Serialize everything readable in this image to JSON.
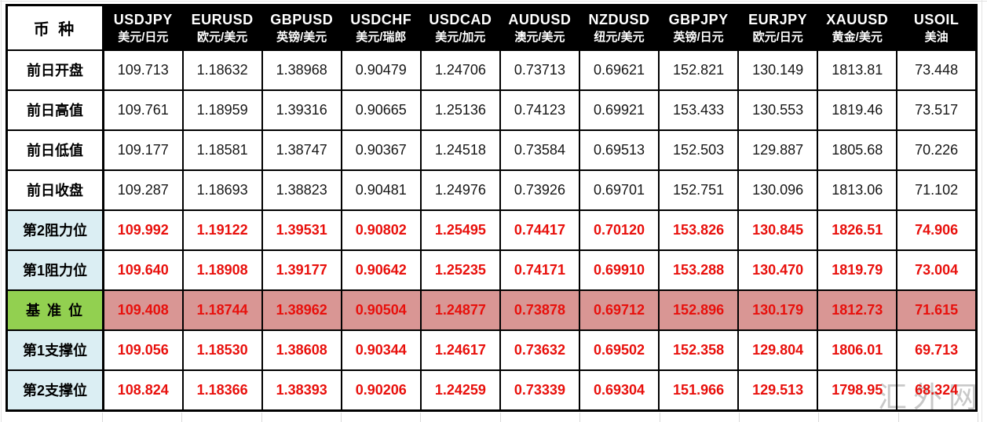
{
  "watermark": {
    "text": "汇外网"
  },
  "table": {
    "corner_label": "币 种"
  },
  "colors": {
    "header_bg": "#000000",
    "header_text": "#ffffff",
    "level_label_bg": "#dbeef3",
    "pivot_label_bg": "#92d050",
    "pivot_row_bg": "#d99694",
    "level_value_text": "#e8100c",
    "border": "#000000",
    "watermark_text": "#b9b9b9"
  },
  "chart_data": {
    "type": "table",
    "corner_label": "币 种",
    "columns": [
      {
        "code": "USDJPY",
        "name": "美元/日元"
      },
      {
        "code": "EURUSD",
        "name": "欧元/美元"
      },
      {
        "code": "GBPUSD",
        "name": "英镑/美元"
      },
      {
        "code": "USDCHF",
        "name": "美元/瑞郎"
      },
      {
        "code": "USDCAD",
        "name": "美元/加元"
      },
      {
        "code": "AUDUSD",
        "name": "澳元/美元"
      },
      {
        "code": "NZDUSD",
        "name": "纽元/美元"
      },
      {
        "code": "GBPJPY",
        "name": "英镑/日元"
      },
      {
        "code": "EURJPY",
        "name": "欧元/日元"
      },
      {
        "code": "XAUUSD",
        "name": "黄金/美元"
      },
      {
        "code": "USOIL",
        "name": "美油"
      }
    ],
    "rows": [
      {
        "label": "前日开盘",
        "type": "prev",
        "values": [
          "109.713",
          "1.18632",
          "1.38968",
          "0.90479",
          "1.24706",
          "0.73713",
          "0.69621",
          "152.821",
          "130.149",
          "1813.81",
          "73.448"
        ]
      },
      {
        "label": "前日高值",
        "type": "prev",
        "values": [
          "109.761",
          "1.18959",
          "1.39316",
          "0.90665",
          "1.25136",
          "0.74123",
          "0.69921",
          "153.433",
          "130.553",
          "1819.46",
          "73.517"
        ]
      },
      {
        "label": "前日低值",
        "type": "prev",
        "values": [
          "109.177",
          "1.18581",
          "1.38747",
          "0.90367",
          "1.24518",
          "0.73584",
          "0.69513",
          "152.503",
          "129.887",
          "1805.68",
          "70.226"
        ]
      },
      {
        "label": "前日收盘",
        "type": "prev",
        "values": [
          "109.287",
          "1.18693",
          "1.38823",
          "0.90481",
          "1.24976",
          "0.73926",
          "0.69701",
          "152.751",
          "130.096",
          "1813.06",
          "71.102"
        ]
      },
      {
        "label": "第2阻力位",
        "type": "resistance",
        "values": [
          "109.992",
          "1.19122",
          "1.39531",
          "0.90802",
          "1.25495",
          "0.74417",
          "0.70120",
          "153.826",
          "130.845",
          "1826.51",
          "74.906"
        ]
      },
      {
        "label": "第1阻力位",
        "type": "resistance",
        "values": [
          "109.640",
          "1.18908",
          "1.39177",
          "0.90642",
          "1.25235",
          "0.74171",
          "0.69910",
          "153.288",
          "130.470",
          "1819.79",
          "73.004"
        ]
      },
      {
        "label": "基 准 位",
        "type": "pivot",
        "values": [
          "109.408",
          "1.18744",
          "1.38962",
          "0.90504",
          "1.24877",
          "0.73878",
          "0.69712",
          "152.896",
          "130.179",
          "1812.73",
          "71.615"
        ]
      },
      {
        "label": "第1支撑位",
        "type": "support",
        "values": [
          "109.056",
          "1.18530",
          "1.38608",
          "0.90344",
          "1.24617",
          "0.73632",
          "0.69502",
          "152.358",
          "129.804",
          "1806.01",
          "69.713"
        ]
      },
      {
        "label": "第2支撑位",
        "type": "support",
        "values": [
          "108.824",
          "1.18366",
          "1.38393",
          "0.90206",
          "1.24259",
          "0.73339",
          "0.69304",
          "151.966",
          "129.513",
          "1798.95",
          "68.324"
        ]
      }
    ]
  }
}
